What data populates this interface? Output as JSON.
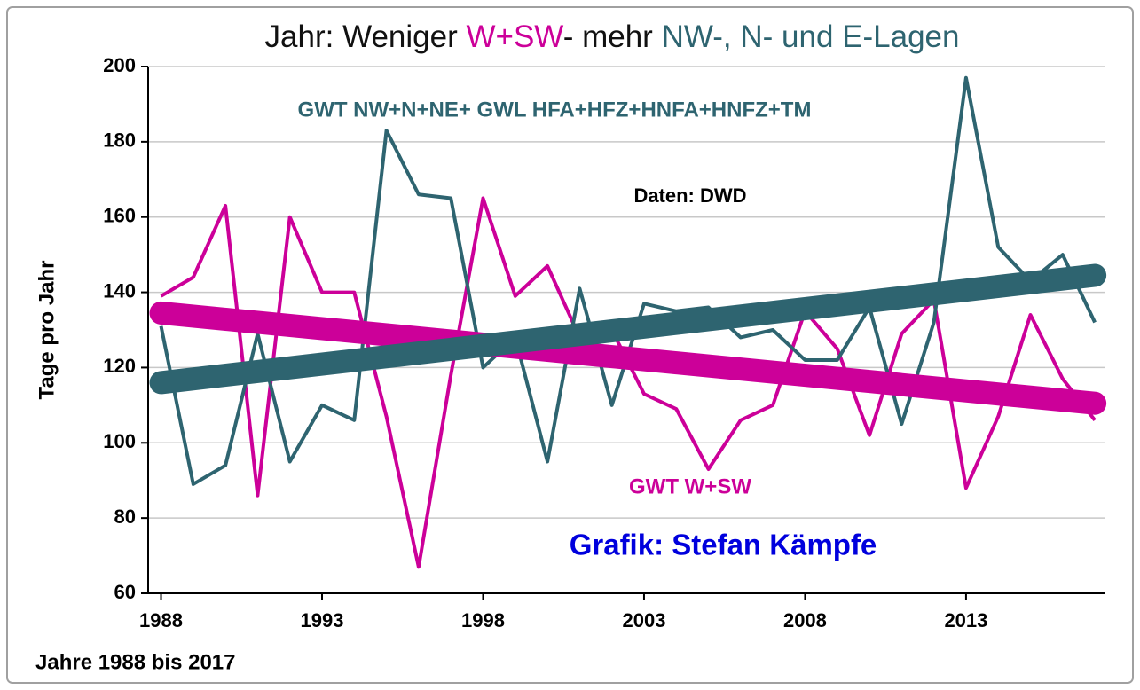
{
  "chart_data": {
    "type": "line",
    "title_parts": [
      {
        "text": "Jahr: Weniger ",
        "color": "#111111"
      },
      {
        "text": "W+SW",
        "color": "#cc0099"
      },
      {
        "text": "- mehr ",
        "color": "#111111"
      },
      {
        "text": "NW-, N- und E-Lagen",
        "color": "#2e6470"
      }
    ],
    "x_label": "Jahre 1988 bis 2017",
    "y_label": "Tage pro Jahr",
    "annotations": [
      "Daten: DWD",
      "Grafik: Stefan Kämpfe"
    ],
    "annotation_colors": [
      "#000000",
      "#0000dd"
    ],
    "x": [
      1988,
      1989,
      1990,
      1991,
      1992,
      1993,
      1994,
      1995,
      1996,
      1997,
      1998,
      1999,
      2000,
      2001,
      2002,
      2003,
      2004,
      2005,
      2006,
      2007,
      2008,
      2009,
      2010,
      2011,
      2012,
      2013,
      2014,
      2015,
      2016,
      2017
    ],
    "trend_x": [
      1988,
      2017
    ],
    "series": [
      {
        "name": "GWT W+SW",
        "color": "#cc0099",
        "values": [
          139,
          144,
          163,
          86,
          160,
          140,
          140,
          107,
          67,
          118,
          165,
          139,
          147,
          128,
          130,
          113,
          109,
          93,
          106,
          110,
          135,
          125,
          102,
          129,
          138,
          88,
          107,
          134,
          117,
          106
        ],
        "trend": [
          134.5,
          110.5
        ]
      },
      {
        "name": "GWT NW+N+NE+ GWL HFA+HFZ+HNFA+HNFZ+TM",
        "color": "#2e6470",
        "values": [
          131,
          89,
          94,
          129,
          95,
          110,
          106,
          183,
          166,
          165,
          120,
          128,
          95,
          141,
          110,
          137,
          135,
          136,
          128,
          130,
          122,
          122,
          136,
          105,
          132,
          197,
          152,
          143,
          150,
          132
        ],
        "trend": [
          116,
          144.5
        ]
      }
    ],
    "xlim": [
      1987.6,
      2017.3
    ],
    "xticks": [
      1988,
      1993,
      1998,
      2003,
      2008,
      2013
    ],
    "ylim": [
      60,
      200
    ],
    "yticks": [
      60,
      80,
      100,
      120,
      140,
      160,
      180,
      200
    ],
    "grid": true
  }
}
